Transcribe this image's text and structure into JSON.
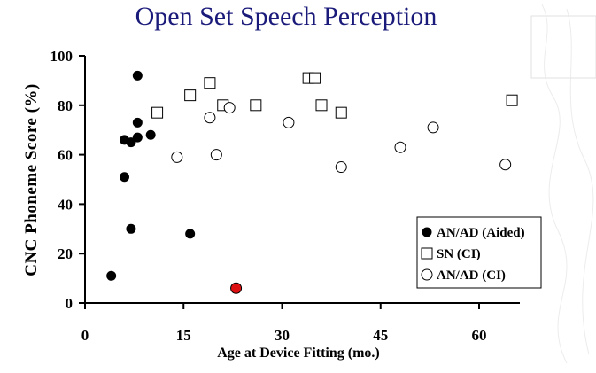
{
  "chart_data": {
    "type": "scatter",
    "title": "Open Set Speech Perception",
    "xlabel": "Age at Device Fitting (mo.)",
    "ylabel": "CNC Phoneme Score (%)",
    "xlim": [
      0,
      65
    ],
    "ylim": [
      0,
      100
    ],
    "xticks": [
      "0",
      "15",
      "30",
      "45",
      "60"
    ],
    "xtick_values": [
      0,
      15,
      30,
      45,
      60
    ],
    "yticks": [
      "0",
      "20",
      "40",
      "60",
      "80",
      "100"
    ],
    "ytick_values": [
      0,
      20,
      40,
      60,
      80,
      100
    ],
    "grid": false,
    "legend_position": "bottom-right",
    "series": [
      {
        "name": "AN/AD (Aided)",
        "marker": "filled-circle",
        "color": "#000000",
        "points": [
          [
            4,
            11
          ],
          [
            6,
            66
          ],
          [
            6,
            51
          ],
          [
            7,
            65
          ],
          [
            7,
            30
          ],
          [
            8,
            92
          ],
          [
            8,
            73
          ],
          [
            8,
            67
          ],
          [
            10,
            68
          ],
          [
            16,
            28
          ]
        ]
      },
      {
        "name": "SN (CI)",
        "marker": "open-square",
        "color": "#000000",
        "points": [
          [
            11,
            77
          ],
          [
            16,
            84
          ],
          [
            19,
            89
          ],
          [
            21,
            80
          ],
          [
            26,
            80
          ],
          [
            34,
            91
          ],
          [
            35,
            91
          ],
          [
            36,
            80
          ],
          [
            39,
            77
          ],
          [
            65,
            82
          ]
        ]
      },
      {
        "name": "AN/AD (CI)",
        "marker": "open-circle",
        "color": "#000000",
        "points": [
          [
            14,
            59
          ],
          [
            19,
            75
          ],
          [
            20,
            60
          ],
          [
            22,
            79
          ],
          [
            31,
            73
          ],
          [
            39,
            55
          ],
          [
            48,
            63
          ],
          [
            53,
            71
          ],
          [
            64,
            56
          ]
        ]
      }
    ],
    "highlight_point": {
      "x": 23,
      "y": 6,
      "color": "#dd1111"
    }
  }
}
